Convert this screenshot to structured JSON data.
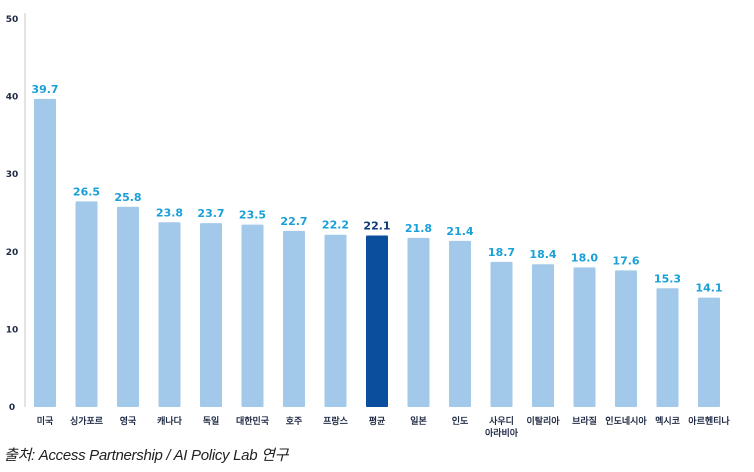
{
  "chart_data": {
    "type": "bar",
    "categories": [
      "미국",
      "싱가포르",
      "영국",
      "캐나다",
      "독일",
      "대한민국",
      "호주",
      "프랑스",
      "평균",
      "일본",
      "인도",
      "사우디\n아라비아",
      "이탈리아",
      "브라질",
      "인도네시아",
      "멕시코",
      "아르헨티나"
    ],
    "values": [
      39.7,
      26.5,
      25.8,
      23.8,
      23.7,
      23.5,
      22.7,
      22.2,
      22.1,
      21.8,
      21.4,
      18.7,
      18.4,
      18.0,
      17.6,
      15.3,
      14.1
    ],
    "value_labels": [
      "39.7",
      "26.5",
      "25.8",
      "23.8",
      "23.7",
      "23.5",
      "22.7",
      "22.2",
      "22.1",
      "21.8",
      "21.4",
      "18.7",
      "18.4",
      "18.0",
      "17.6",
      "15.3",
      "14.1"
    ],
    "highlight_category": "평균",
    "yticks": [
      0,
      10,
      20,
      30,
      40,
      50
    ],
    "ylim": [
      0,
      50
    ],
    "title": "",
    "xlabel": "",
    "ylabel": "",
    "grid": false,
    "colors": {
      "bar": "#a3c9ea",
      "highlight": "#0a4f9e",
      "label": "#1aa0d8",
      "highlight_label": "#0b3a78"
    }
  },
  "caption": "출처: Access Partnership / AI Policy Lab 연구"
}
